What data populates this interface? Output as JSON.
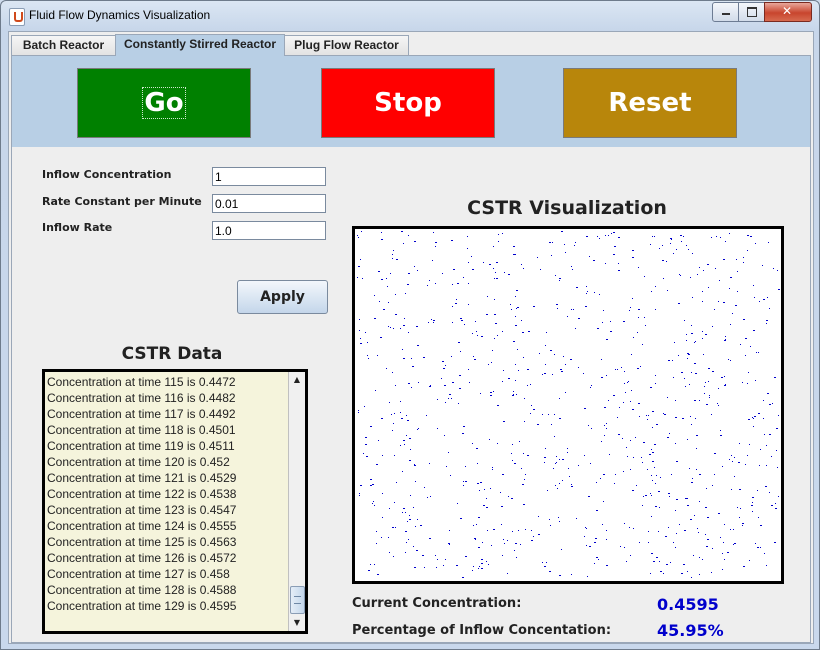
{
  "window": {
    "title": "Fluid Flow Dynamics Visualization"
  },
  "tabs": [
    {
      "label": "Batch Reactor",
      "active": false
    },
    {
      "label": "Constantly Stirred Reactor",
      "active": true
    },
    {
      "label": "Plug Flow Reactor",
      "active": false
    }
  ],
  "controls": {
    "go_label": "Go",
    "stop_label": "Stop",
    "reset_label": "Reset",
    "colors": {
      "go": "#008000",
      "stop": "#ff0000",
      "reset": "#b8860b"
    }
  },
  "params": {
    "inflow_concentration_label": "Inflow Concentration",
    "inflow_concentration_value": "1",
    "rate_constant_label": "Rate Constant per Minute",
    "rate_constant_value": "0.01",
    "inflow_rate_label": "Inflow Rate",
    "inflow_rate_value": "1.0",
    "apply_label": "Apply"
  },
  "data_panel": {
    "title": "CSTR Data",
    "rows": [
      "Concentration at time 115 is 0.4472",
      "Concentration at time 116 is 0.4482",
      "Concentration at time 117 is 0.4492",
      "Concentration at time 118 is 0.4501",
      "Concentration at time 119 is 0.4511",
      "Concentration at time 120 is 0.452",
      "Concentration at time 121 is 0.4529",
      "Concentration at time 122 is 0.4538",
      "Concentration at time 123 is 0.4547",
      "Concentration at time 124 is 0.4555",
      "Concentration at time 125 is 0.4563",
      "Concentration at time 126 is 0.4572",
      "Concentration at time 127 is 0.458",
      "Concentration at time 128 is 0.4588",
      "Concentration at time 129 is 0.4595"
    ]
  },
  "visualization": {
    "title": "CSTR Visualization",
    "particle_color": "#0000cc",
    "particle_count": 900
  },
  "stats": {
    "current_concentration_label": "Current Concentration:",
    "current_concentration_value": "0.4595",
    "percentage_label": "Percentage of Inflow Concentation:",
    "percentage_value": "45.95%"
  }
}
